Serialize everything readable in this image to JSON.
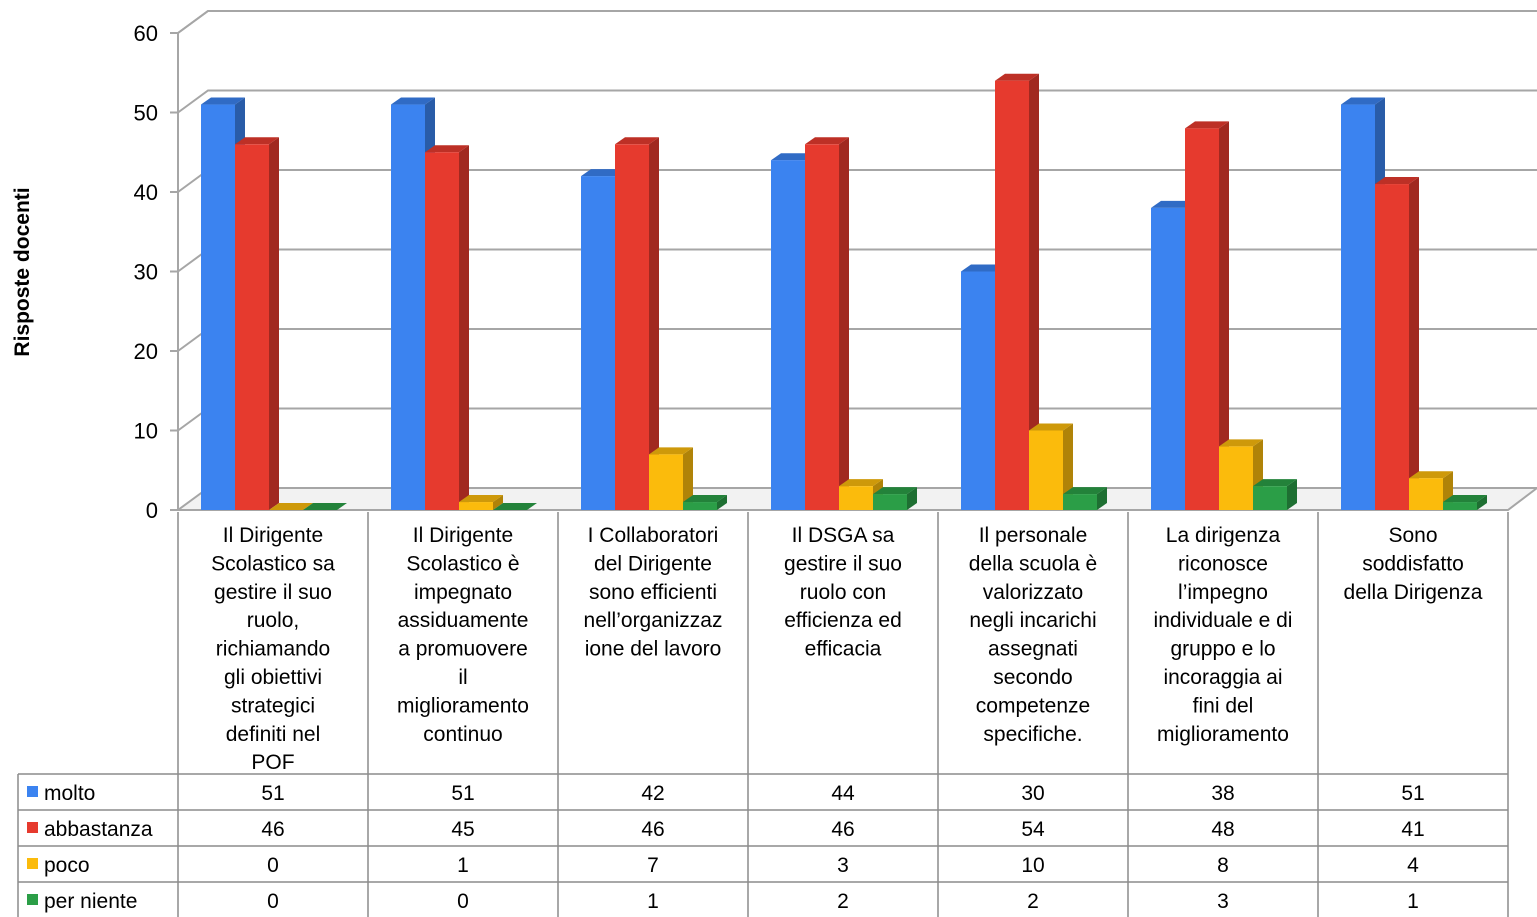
{
  "chart_data": {
    "type": "bar",
    "title": "",
    "ylabel": "Risposte docenti",
    "xlabel": "",
    "ylim": [
      0,
      60
    ],
    "yticks": [
      0,
      10,
      20,
      30,
      40,
      50,
      60
    ],
    "grid": true,
    "legend": "data-table-left",
    "categories": [
      "Il Dirigente Scolastico sa gestire il suo ruolo, richiamando gli obiettivi strategici definiti nel POF",
      "Il Dirigente Scolastico è impegnato assiduamente a promuovere il miglioramento continuo",
      "I Collaboratori del Dirigente sono efficienti nell’organizzazione del lavoro",
      "Il DSGA sa gestire il suo ruolo con efficienza ed efficacia",
      "Il personale della scuola è valorizzato negli incarichi assegnati secondo competenze specifiche.",
      "La dirigenza riconosce l’impegno individuale e di gruppo e lo incoraggia ai fini del miglioramento",
      "Sono soddisfatto della Dirigenza"
    ],
    "category_lines": [
      [
        "Il Dirigente",
        "Scolastico sa",
        "gestire il suo",
        "ruolo,",
        "richiamando",
        "gli obiettivi",
        "strategici",
        "definiti nel",
        "POF"
      ],
      [
        "Il Dirigente",
        "Scolastico è",
        "impegnato",
        "assiduamente",
        "a promuovere",
        "il",
        "miglioramento",
        "continuo"
      ],
      [
        "I Collaboratori",
        "del Dirigente",
        "sono efficienti",
        "nell’organizzaz",
        "ione del lavoro"
      ],
      [
        "Il DSGA sa",
        "gestire il suo",
        "ruolo con",
        "efficienza ed",
        "efficacia"
      ],
      [
        "Il personale",
        "della scuola è",
        "valorizzato",
        "negli incarichi",
        "assegnati",
        "secondo",
        "competenze",
        "specifiche."
      ],
      [
        "La dirigenza",
        "riconosce",
        "l’impegno",
        "individuale e di",
        "gruppo  e lo",
        "incoraggia ai",
        "fini del",
        "miglioramento"
      ],
      [
        "Sono",
        "soddisfatto",
        "della Dirigenza"
      ]
    ],
    "series": [
      {
        "name": "molto",
        "color": "#3b83f0",
        "values": [
          51,
          51,
          42,
          44,
          30,
          38,
          51
        ]
      },
      {
        "name": "abbastanza",
        "color": "#e63a2e",
        "values": [
          46,
          45,
          46,
          46,
          54,
          48,
          41
        ]
      },
      {
        "name": "poco",
        "color": "#fbbb0c",
        "values": [
          0,
          1,
          7,
          3,
          10,
          8,
          4
        ]
      },
      {
        "name": "per niente",
        "color": "#2b9e47",
        "values": [
          0,
          0,
          1,
          2,
          2,
          3,
          1
        ]
      }
    ]
  }
}
